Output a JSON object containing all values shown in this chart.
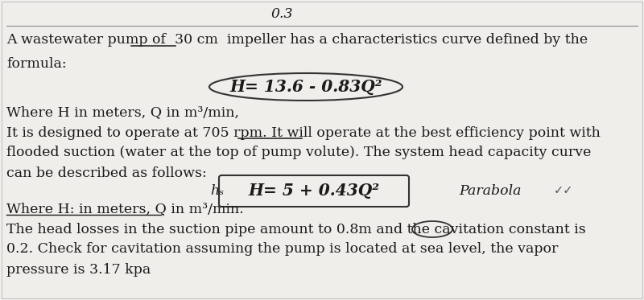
{
  "bg_color": "#f0eeeb",
  "panel_color": "#f5f3f0",
  "text_color": "#1a1a1a",
  "top_label": "0.3",
  "line1a": "A wastewater pump of  30 cm  impeller has a characteristics curve defined by the",
  "line2": "formula:",
  "formula1": "H= 13.6 - 0.83Q²",
  "line3": "Where H in meters, Q in m³/min,",
  "line4": "It is designed to operate at 705 rpm. It will operate at the best efficiency point with",
  "line5": "flooded suction (water at the top of pump volute). The system head capacity curve",
  "line6": "can be described as follows:",
  "hs_label": "hₛ",
  "formula2": "H= 5 + 0.43Q²",
  "parabola_label": "Parabola",
  "line7": "Where H: in meters, Q in m³/min.",
  "line8": "The head losses in the suction pipe amount to 0.8m and the cavitation constant is",
  "line9": "0.2. Check for cavitation assuming the pump is located at sea level, the vapor",
  "line10": "pressure is 3.17 kpa",
  "border_color": "#333333",
  "figsize": [
    8.0,
    3.73
  ],
  "dpi": 100
}
